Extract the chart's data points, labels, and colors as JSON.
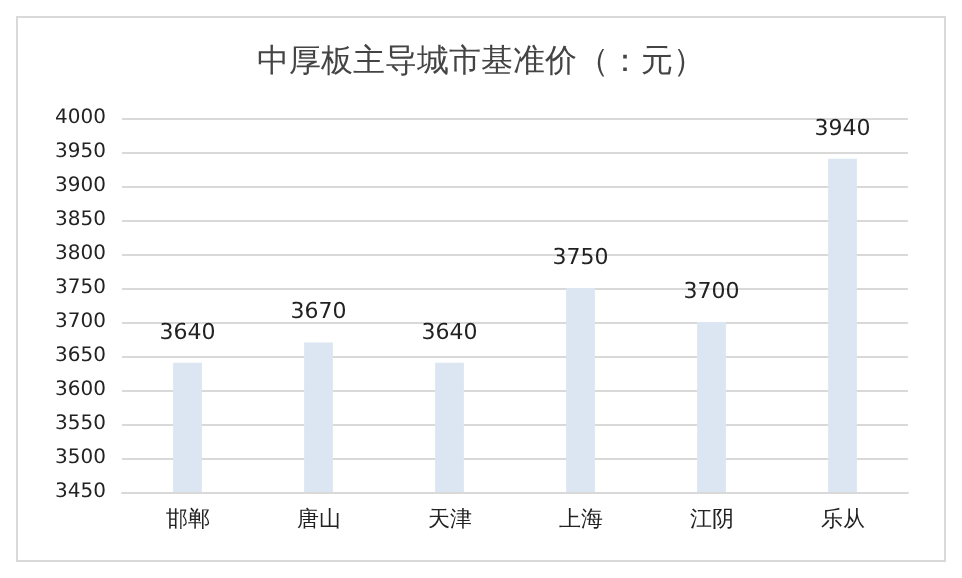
{
  "chart_data": {
    "type": "bar",
    "title": "中厚板主导城市基准价（：元）",
    "categories": [
      "邯郸",
      "唐山",
      "天津",
      "上海",
      "江阴",
      "乐从"
    ],
    "values": [
      3640,
      3670,
      3640,
      3750,
      3700,
      3940
    ],
    "color": "#dce6f2",
    "ylim": [
      3450,
      4000
    ],
    "yticks": [
      3450,
      3500,
      3550,
      3600,
      3650,
      3700,
      3750,
      3800,
      3850,
      3900,
      3950,
      4000
    ],
    "grid": "y",
    "data_labels": true
  }
}
